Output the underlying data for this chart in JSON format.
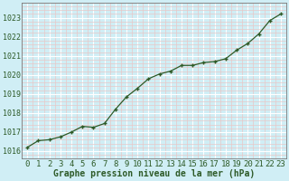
{
  "x": [
    0,
    1,
    2,
    3,
    4,
    5,
    6,
    7,
    8,
    9,
    10,
    11,
    12,
    13,
    14,
    15,
    16,
    17,
    18,
    19,
    20,
    21,
    22,
    23
  ],
  "y": [
    1016.2,
    1016.55,
    1016.6,
    1016.75,
    1017.0,
    1017.3,
    1017.25,
    1017.45,
    1018.2,
    1018.85,
    1019.3,
    1019.8,
    1020.05,
    1020.2,
    1020.5,
    1020.5,
    1020.65,
    1020.7,
    1020.85,
    1021.3,
    1021.65,
    1022.15,
    1022.85,
    1023.2
  ],
  "line_color": "#2d5a27",
  "marker_color": "#2d5a27",
  "bg_color": "#d0eef5",
  "grid_major_color": "#ffffff",
  "grid_minor_color": "#e8c8c8",
  "ylabel_ticks": [
    1016,
    1017,
    1018,
    1019,
    1020,
    1021,
    1022,
    1023
  ],
  "xlabel_ticks": [
    0,
    1,
    2,
    3,
    4,
    5,
    6,
    7,
    8,
    9,
    10,
    11,
    12,
    13,
    14,
    15,
    16,
    17,
    18,
    19,
    20,
    21,
    22,
    23
  ],
  "xlabel": "Graphe pression niveau de la mer (hPa)",
  "ylim": [
    1015.6,
    1023.6
  ],
  "xlim": [
    -0.5,
    23.5
  ],
  "tick_color": "#2d5a27",
  "label_color": "#2d5a27",
  "xlabel_fontsize": 6.5,
  "ylabel_fontsize": 6.0,
  "spine_color": "#7a7a7a"
}
